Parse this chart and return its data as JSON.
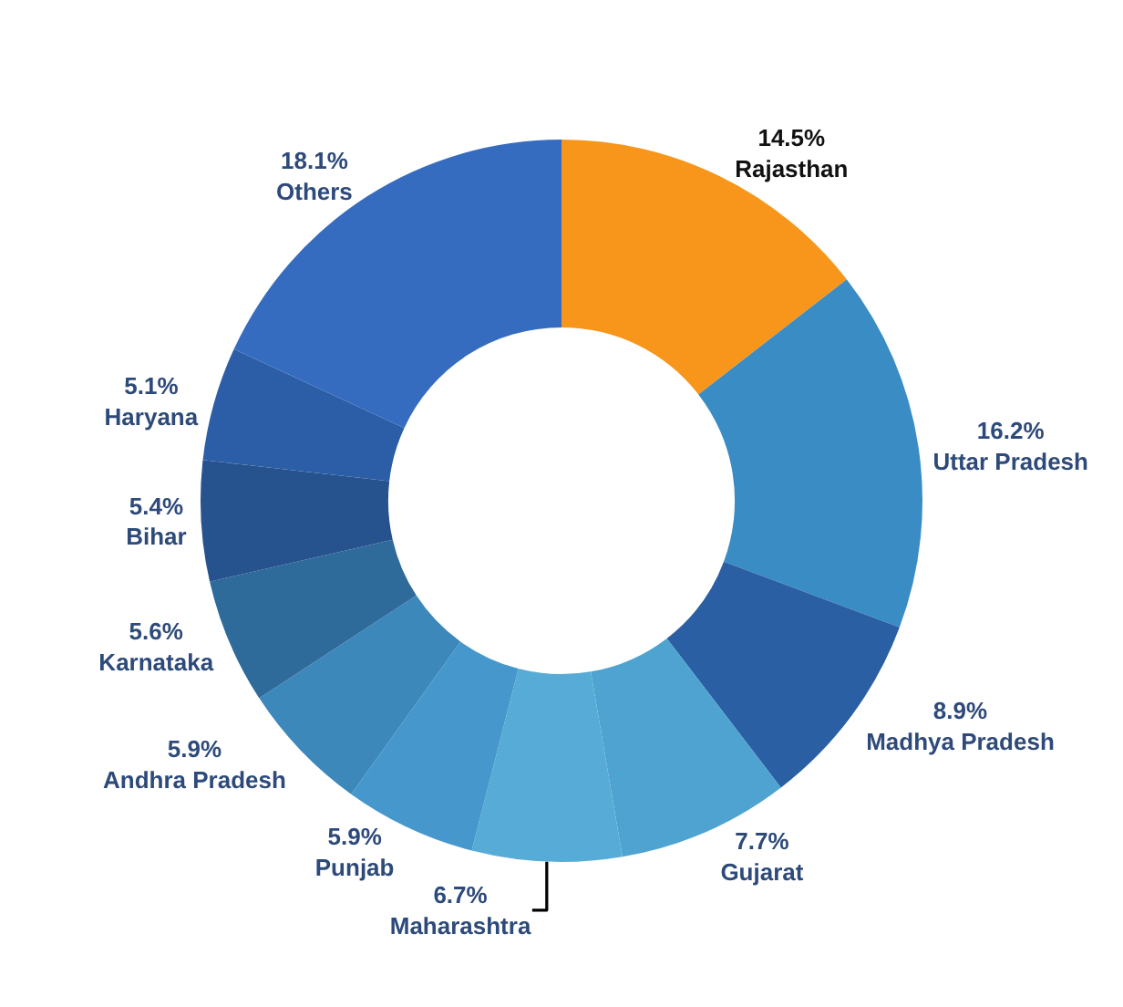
{
  "chart_data": {
    "type": "donut",
    "categories": [
      "Rajasthan",
      "Uttar Pradesh",
      "Madhya Pradesh",
      "Gujarat",
      "Maharashtra",
      "Punjab",
      "Andhra Pradesh",
      "Karnataka",
      "Bihar",
      "Haryana",
      "Others"
    ],
    "values": [
      14.5,
      16.2,
      8.9,
      7.7,
      6.7,
      5.9,
      5.9,
      5.6,
      5.4,
      5.1,
      18.1
    ],
    "value_labels": [
      "14.5%",
      "16.2%",
      "8.9%",
      "7.7%",
      "6.7%",
      "5.9%",
      "5.9%",
      "5.6%",
      "5.4%",
      "5.1%",
      "18.1%"
    ],
    "colors": [
      "#f7961a",
      "#3a8cc4",
      "#2a5fa3",
      "#4ea3d0",
      "#56acd6",
      "#4698cc",
      "#3d88bb",
      "#2e6a9a",
      "#26538e",
      "#2b5ea6",
      "#356cbf"
    ],
    "legend": false
  }
}
